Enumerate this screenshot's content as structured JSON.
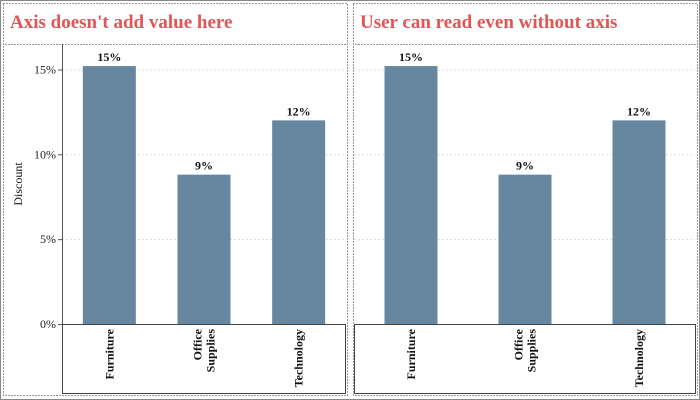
{
  "colors": {
    "bar": "#66879f",
    "title": "#e05555"
  },
  "chart_data": [
    {
      "type": "bar",
      "title": "Axis doesn't add value here",
      "ylabel": "Discount",
      "show_y_axis": true,
      "categories": [
        "Furniture",
        "Office\nSupplies",
        "Technology"
      ],
      "values": [
        15.2,
        8.8,
        12.0
      ],
      "data_labels": [
        "15%",
        "9%",
        "12%"
      ],
      "ylim": [
        0,
        16.5
      ],
      "yticks": [
        0,
        5,
        10,
        15
      ],
      "ytick_labels": [
        "0%",
        "5%",
        "10%",
        "15%"
      ],
      "grid": true
    },
    {
      "type": "bar",
      "title": "User can read even without axis",
      "ylabel": "",
      "show_y_axis": false,
      "categories": [
        "Furniture",
        "Office\nSupplies",
        "Technology"
      ],
      "values": [
        15.2,
        8.8,
        12.0
      ],
      "data_labels": [
        "15%",
        "9%",
        "12%"
      ],
      "ylim": [
        0,
        16.5
      ],
      "grid": true
    }
  ]
}
